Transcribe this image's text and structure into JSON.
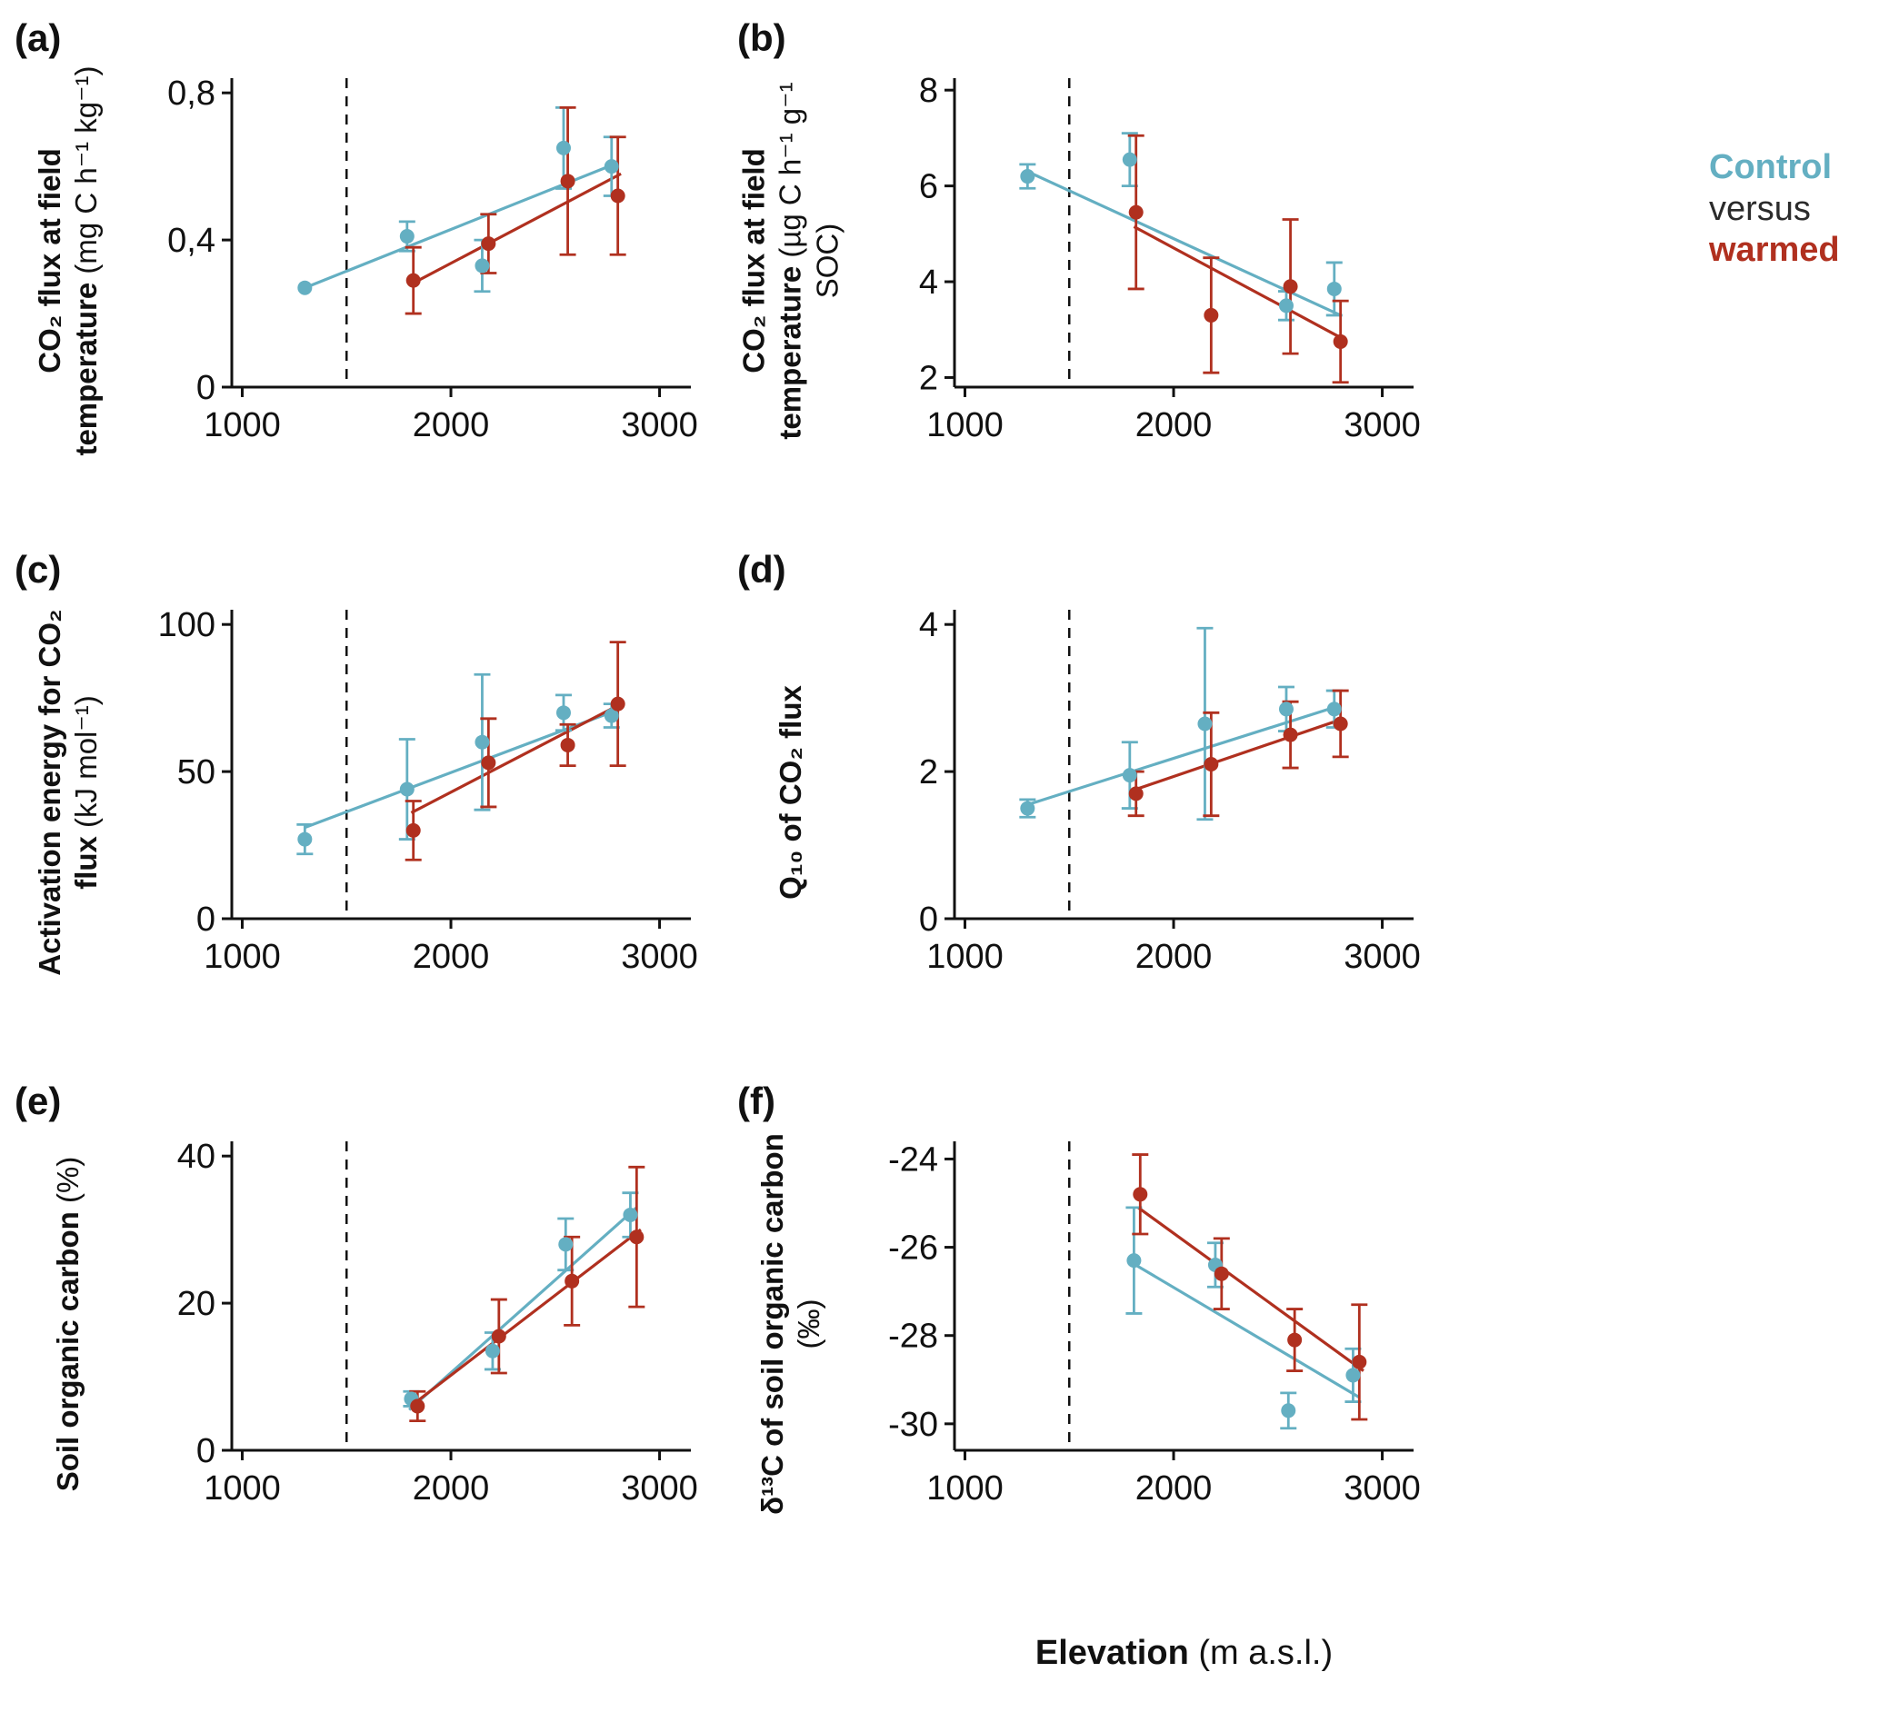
{
  "colors": {
    "control": "#64AFC2",
    "warmed": "#B0301F",
    "versus": "#2B2B2B",
    "axis": "#111111"
  },
  "figure": {
    "xaxis_title": {
      "bold": "Elevation",
      "normal": "(m a.s.l.)"
    },
    "legend": [
      {
        "label": "Control",
        "color_key": "control"
      },
      {
        "label": "versus",
        "color_key": "versus"
      },
      {
        "label": "warmed",
        "color_key": "warmed"
      }
    ]
  },
  "chart_data": [
    {
      "id": "a",
      "panel_label": "(a)",
      "type": "scatter",
      "ylabel_bold": "CO₂ flux at field temperature",
      "ylabel_normal": "(mg C h⁻¹ kg⁻¹)",
      "x_domain": [
        950,
        3150
      ],
      "y_domain": [
        0,
        0.84
      ],
      "x_ticks": [
        1000,
        2000,
        3000
      ],
      "x_tick_labels": [
        "1000",
        "2000",
        "3000"
      ],
      "y_ticks": [
        0,
        0.4,
        0.8
      ],
      "y_tick_labels": [
        "0",
        "0,4",
        "0,8"
      ],
      "dashed_x": 1500,
      "series": [
        {
          "name": "Control",
          "color_key": "control",
          "points": [
            {
              "x": 1300,
              "y": 0.27,
              "e": 0
            },
            {
              "x": 1790,
              "y": 0.41,
              "e": 0.04
            },
            {
              "x": 2150,
              "y": 0.33,
              "e": 0.07
            },
            {
              "x": 2540,
              "y": 0.65,
              "e": 0.11
            },
            {
              "x": 2770,
              "y": 0.6,
              "e": 0.08
            }
          ],
          "line": [
            [
              1300,
              0.27
            ],
            [
              2800,
              0.61
            ]
          ]
        },
        {
          "name": "warmed",
          "color_key": "warmed",
          "points": [
            {
              "x": 1820,
              "y": 0.29,
              "e": 0.09
            },
            {
              "x": 2180,
              "y": 0.39,
              "e": 0.08
            },
            {
              "x": 2560,
              "y": 0.56,
              "e": 0.2
            },
            {
              "x": 2800,
              "y": 0.52,
              "e": 0.16
            }
          ],
          "line": [
            [
              1810,
              0.28
            ],
            [
              2815,
              0.58
            ]
          ]
        }
      ]
    },
    {
      "id": "b",
      "panel_label": "(b)",
      "type": "scatter",
      "ylabel_bold": "CO₂ flux at field temperature",
      "ylabel_normal": "(µg C h⁻¹ g⁻¹ SOC)",
      "x_domain": [
        950,
        3150
      ],
      "y_domain": [
        1.8,
        8.25
      ],
      "x_ticks": [
        1000,
        2000,
        3000
      ],
      "x_tick_labels": [
        "1000",
        "2000",
        "3000"
      ],
      "y_ticks": [
        2,
        4,
        6,
        8
      ],
      "y_tick_labels": [
        "2",
        "4",
        "6",
        "8"
      ],
      "dashed_x": 1500,
      "series": [
        {
          "name": "Control",
          "color_key": "control",
          "points": [
            {
              "x": 1300,
              "y": 6.2,
              "e": 0.25
            },
            {
              "x": 1790,
              "y": 6.55,
              "e": 0.55
            },
            {
              "x": 2540,
              "y": 3.5,
              "e": 0.3
            },
            {
              "x": 2770,
              "y": 3.85,
              "e": 0.55
            }
          ],
          "line": [
            [
              1300,
              6.3
            ],
            [
              2800,
              3.3
            ]
          ]
        },
        {
          "name": "warmed",
          "color_key": "warmed",
          "points": [
            {
              "x": 1820,
              "y": 5.45,
              "e": 1.6
            },
            {
              "x": 2180,
              "y": 3.3,
              "e": 1.2
            },
            {
              "x": 2560,
              "y": 3.9,
              "e": 1.4
            },
            {
              "x": 2800,
              "y": 2.75,
              "e": 0.85
            }
          ],
          "line": [
            [
              1810,
              5.15
            ],
            [
              2815,
              2.8
            ]
          ]
        }
      ]
    },
    {
      "id": "c",
      "panel_label": "(c)",
      "type": "scatter",
      "ylabel_bold": "Activation energy for CO₂ flux",
      "ylabel_normal": "(kJ mol⁻¹)",
      "x_domain": [
        950,
        3150
      ],
      "y_domain": [
        0,
        105
      ],
      "x_ticks": [
        1000,
        2000,
        3000
      ],
      "x_tick_labels": [
        "1000",
        "2000",
        "3000"
      ],
      "y_ticks": [
        0,
        50,
        100
      ],
      "y_tick_labels": [
        "0",
        "50",
        "100"
      ],
      "dashed_x": 1500,
      "series": [
        {
          "name": "Control",
          "color_key": "control",
          "points": [
            {
              "x": 1300,
              "y": 27,
              "e": 5
            },
            {
              "x": 1790,
              "y": 44,
              "e": 17
            },
            {
              "x": 2150,
              "y": 60,
              "e": 23
            },
            {
              "x": 2540,
              "y": 70,
              "e": 6
            },
            {
              "x": 2770,
              "y": 69,
              "e": 4
            }
          ],
          "line": [
            [
              1300,
              31
            ],
            [
              2800,
              71
            ]
          ]
        },
        {
          "name": "warmed",
          "color_key": "warmed",
          "points": [
            {
              "x": 1820,
              "y": 30,
              "e": 10
            },
            {
              "x": 2180,
              "y": 53,
              "e": 15
            },
            {
              "x": 2560,
              "y": 59,
              "e": 7
            },
            {
              "x": 2800,
              "y": 73,
              "e": 21
            }
          ],
          "line": [
            [
              1810,
              36
            ],
            [
              2815,
              73
            ]
          ]
        }
      ]
    },
    {
      "id": "d",
      "panel_label": "(d)",
      "type": "scatter",
      "ylabel_bold": "Q₁₀ of CO₂ flux",
      "ylabel_normal": "",
      "x_domain": [
        950,
        3150
      ],
      "y_domain": [
        0,
        4.2
      ],
      "x_ticks": [
        1000,
        2000,
        3000
      ],
      "x_tick_labels": [
        "1000",
        "2000",
        "3000"
      ],
      "y_ticks": [
        0,
        2,
        4
      ],
      "y_tick_labels": [
        "0",
        "2",
        "4"
      ],
      "dashed_x": 1500,
      "series": [
        {
          "name": "Control",
          "color_key": "control",
          "points": [
            {
              "x": 1300,
              "y": 1.5,
              "e": 0.12
            },
            {
              "x": 1790,
              "y": 1.95,
              "e": 0.45
            },
            {
              "x": 2150,
              "y": 2.65,
              "e": 1.3
            },
            {
              "x": 2540,
              "y": 2.85,
              "e": 0.3
            },
            {
              "x": 2770,
              "y": 2.85,
              "e": 0.25
            }
          ],
          "line": [
            [
              1300,
              1.55
            ],
            [
              2800,
              2.9
            ]
          ]
        },
        {
          "name": "warmed",
          "color_key": "warmed",
          "points": [
            {
              "x": 1820,
              "y": 1.7,
              "e": 0.3
            },
            {
              "x": 2180,
              "y": 2.1,
              "e": 0.7
            },
            {
              "x": 2560,
              "y": 2.5,
              "e": 0.45
            },
            {
              "x": 2800,
              "y": 2.65,
              "e": 0.45
            }
          ],
          "line": [
            [
              1810,
              1.75
            ],
            [
              2815,
              2.72
            ]
          ]
        }
      ]
    },
    {
      "id": "e",
      "panel_label": "(e)",
      "type": "scatter",
      "ylabel_bold": "Soil organic carbon",
      "ylabel_normal": "(%)",
      "x_domain": [
        950,
        3150
      ],
      "y_domain": [
        0,
        42
      ],
      "x_ticks": [
        1000,
        2000,
        3000
      ],
      "x_tick_labels": [
        "1000",
        "2000",
        "3000"
      ],
      "y_ticks": [
        0,
        20,
        40
      ],
      "y_tick_labels": [
        "0",
        "20",
        "40"
      ],
      "dashed_x": 1500,
      "series": [
        {
          "name": "Control",
          "color_key": "control",
          "points": [
            {
              "x": 1810,
              "y": 7,
              "e": 1
            },
            {
              "x": 2200,
              "y": 13.5,
              "e": 2.5
            },
            {
              "x": 2550,
              "y": 28,
              "e": 3.5
            },
            {
              "x": 2860,
              "y": 32,
              "e": 3
            }
          ],
          "line": [
            [
              1800,
              5.5
            ],
            [
              2890,
              33
            ]
          ]
        },
        {
          "name": "warmed",
          "color_key": "warmed",
          "points": [
            {
              "x": 1840,
              "y": 6,
              "e": 2
            },
            {
              "x": 2230,
              "y": 15.5,
              "e": 5
            },
            {
              "x": 2580,
              "y": 23,
              "e": 6
            },
            {
              "x": 2890,
              "y": 29,
              "e": 9.5
            }
          ],
          "line": [
            [
              1830,
              6.5
            ],
            [
              2910,
              30
            ]
          ]
        }
      ]
    },
    {
      "id": "f",
      "panel_label": "(f)",
      "type": "scatter",
      "ylabel_bold": "δ¹³C of soil organic carbon",
      "ylabel_normal": "(‰)",
      "x_domain": [
        950,
        3150
      ],
      "y_domain": [
        -30.6,
        -23.6
      ],
      "x_ticks": [
        1000,
        2000,
        3000
      ],
      "x_tick_labels": [
        "1000",
        "2000",
        "3000"
      ],
      "y_ticks": [
        -24,
        -26,
        -28,
        -30
      ],
      "y_tick_labels": [
        "-24",
        "-26",
        "-28",
        "-30"
      ],
      "dashed_x": 1500,
      "series": [
        {
          "name": "Control",
          "color_key": "control",
          "points": [
            {
              "x": 1810,
              "y": -26.3,
              "e": 1.2
            },
            {
              "x": 2200,
              "y": -26.4,
              "e": 0.5
            },
            {
              "x": 2550,
              "y": -29.7,
              "e": 0.4
            },
            {
              "x": 2860,
              "y": -28.9,
              "e": 0.6
            }
          ],
          "line": [
            [
              1800,
              -26.35
            ],
            [
              2890,
              -29.4
            ]
          ]
        },
        {
          "name": "warmed",
          "color_key": "warmed",
          "points": [
            {
              "x": 1840,
              "y": -24.8,
              "e": 0.9
            },
            {
              "x": 2230,
              "y": -26.6,
              "e": 0.8
            },
            {
              "x": 2580,
              "y": -28.1,
              "e": 0.7
            },
            {
              "x": 2890,
              "y": -28.6,
              "e": 1.3
            }
          ],
          "line": [
            [
              1830,
              -25.1
            ],
            [
              2910,
              -28.8
            ]
          ]
        }
      ]
    }
  ]
}
